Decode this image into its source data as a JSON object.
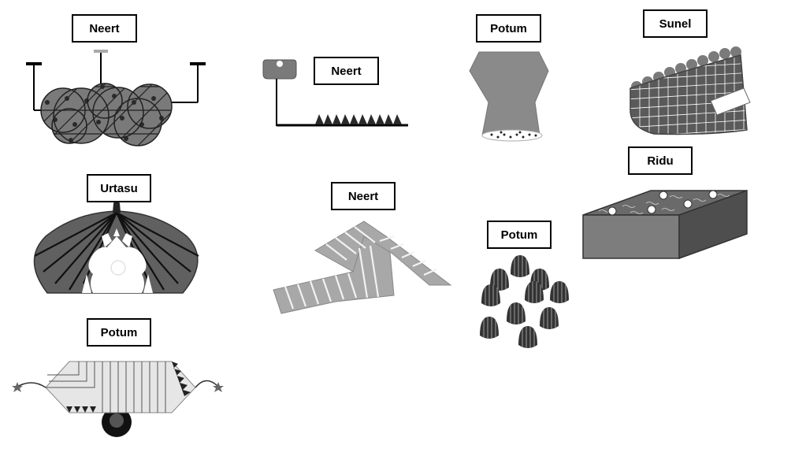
{
  "labels": {
    "cloud_neert": "Neert",
    "spiky_neert": "Neert",
    "funnel_potum": "Potum",
    "sunel": "Sunel",
    "urtasu": "Urtasu",
    "zigzag_neert": "Neert",
    "ridu": "Ridu",
    "eggs_potum": "Potum",
    "hexcart_potum": "Potum"
  },
  "colors": {
    "ink": "#000000",
    "dark_gray": "#555555",
    "mid_gray": "#7a7a7a",
    "light_gray": "#a8a8a8",
    "pale_gray": "#d9d9d9",
    "white": "#ffffff"
  }
}
